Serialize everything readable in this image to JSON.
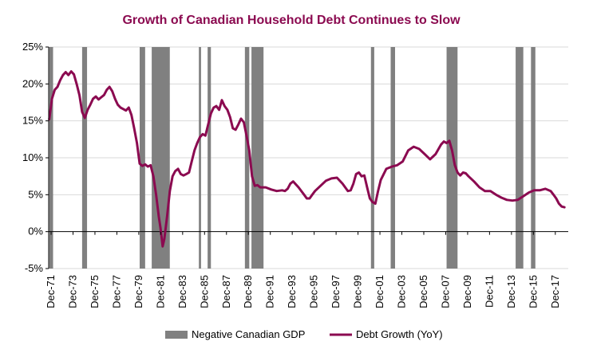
{
  "chart_data": {
    "type": "line",
    "title": "Growth of Canadian Household Debt Continues to Slow",
    "xlabel": "",
    "ylabel": "",
    "ylim": [
      -5,
      25
    ],
    "yticks": [
      -5,
      0,
      5,
      10,
      15,
      20,
      25
    ],
    "ytick_labels": [
      "-5%",
      "0%",
      "5%",
      "10%",
      "15%",
      "20%",
      "25%"
    ],
    "xlim": [
      1971.7,
      2019.1
    ],
    "xticks": [
      1971.92,
      1973.92,
      1975.92,
      1977.92,
      1979.92,
      1981.92,
      1983.92,
      1985.92,
      1987.92,
      1989.92,
      1991.92,
      1993.92,
      1995.92,
      1997.92,
      1999.92,
      2001.92,
      2003.92,
      2005.92,
      2007.92,
      2009.92,
      2011.92,
      2013.92,
      2015.92,
      2017.92
    ],
    "xtick_labels": [
      "Dec-71",
      "Dec-73",
      "Dec-75",
      "Dec-77",
      "Dec-79",
      "Dec-81",
      "Dec-83",
      "Dec-85",
      "Dec-87",
      "Dec-89",
      "Dec-91",
      "Dec-93",
      "Dec-95",
      "Dec-97",
      "Dec-99",
      "Dec-01",
      "Dec-03",
      "Dec-05",
      "Dec-07",
      "Dec-09",
      "Dec-11",
      "Dec-13",
      "Dec-15",
      "Dec-17"
    ],
    "grid": "horizontal",
    "legend_position": "bottom",
    "recessions": {
      "name": "Negative Canadian GDP",
      "color": "#808080",
      "periods": [
        [
          1971.75,
          1972.1
        ],
        [
          1974.75,
          1975.2
        ],
        [
          1980.0,
          1980.5
        ],
        [
          1981.1,
          1982.75
        ],
        [
          1985.4,
          1985.6
        ],
        [
          1986.2,
          1986.5
        ],
        [
          1989.6,
          1990.0
        ],
        [
          1990.2,
          1991.3
        ],
        [
          2001.1,
          2001.4
        ],
        [
          2002.9,
          2003.3
        ],
        [
          2008.0,
          2009.0
        ],
        [
          2014.3,
          2015.0
        ],
        [
          2015.7,
          2016.1
        ]
      ]
    },
    "series": [
      {
        "name": "Debt Growth (YoY)",
        "color": "#8B0A50",
        "x": [
          1971.75,
          1972.0,
          1972.25,
          1972.5,
          1972.75,
          1973.0,
          1973.25,
          1973.5,
          1973.75,
          1974.0,
          1974.25,
          1974.5,
          1974.75,
          1975.0,
          1975.25,
          1975.5,
          1975.75,
          1976.0,
          1976.25,
          1976.5,
          1976.75,
          1977.0,
          1977.25,
          1977.5,
          1977.75,
          1978.0,
          1978.25,
          1978.5,
          1978.75,
          1979.0,
          1979.25,
          1979.5,
          1979.75,
          1980.0,
          1980.25,
          1980.5,
          1980.75,
          1981.0,
          1981.25,
          1981.5,
          1981.75,
          1981.9,
          1982.1,
          1982.25,
          1982.5,
          1982.75,
          1983.0,
          1983.25,
          1983.5,
          1983.75,
          1984.0,
          1984.25,
          1984.5,
          1984.75,
          1985.0,
          1985.25,
          1985.5,
          1985.75,
          1986.0,
          1986.25,
          1986.5,
          1986.75,
          1987.0,
          1987.25,
          1987.5,
          1987.75,
          1988.0,
          1988.25,
          1988.5,
          1988.75,
          1989.0,
          1989.25,
          1989.5,
          1989.75,
          1990.0,
          1990.25,
          1990.5,
          1990.75,
          1991.0,
          1991.5,
          1992.0,
          1992.5,
          1993.0,
          1993.25,
          1993.5,
          1993.75,
          1994.0,
          1994.5,
          1995.0,
          1995.25,
          1995.5,
          1995.75,
          1996.0,
          1996.5,
          1997.0,
          1997.5,
          1998.0,
          1998.5,
          1999.0,
          1999.25,
          1999.5,
          1999.75,
          2000.0,
          2000.25,
          2000.5,
          2000.75,
          2001.0,
          2001.25,
          2001.5,
          2001.75,
          2002.0,
          2002.5,
          2003.0,
          2003.5,
          2004.0,
          2004.5,
          2005.0,
          2005.5,
          2006.0,
          2006.5,
          2007.0,
          2007.5,
          2007.75,
          2008.0,
          2008.25,
          2008.5,
          2008.75,
          2009.0,
          2009.25,
          2009.5,
          2009.75,
          2010.0,
          2010.5,
          2011.0,
          2011.5,
          2012.0,
          2012.5,
          2013.0,
          2013.5,
          2014.0,
          2014.5,
          2015.0,
          2015.5,
          2016.0,
          2016.5,
          2017.0,
          2017.5,
          2017.75,
          2018.0,
          2018.25,
          2018.5,
          2018.75
        ],
        "y": [
          15.2,
          18.0,
          19.2,
          19.6,
          20.5,
          21.2,
          21.6,
          21.2,
          21.7,
          21.3,
          20.0,
          18.5,
          16.2,
          15.4,
          16.5,
          17.2,
          18.0,
          18.3,
          17.9,
          18.2,
          18.5,
          19.2,
          19.6,
          19.0,
          18.0,
          17.2,
          16.8,
          16.6,
          16.4,
          16.8,
          15.8,
          14.0,
          12.0,
          9.2,
          8.9,
          9.1,
          8.8,
          9.0,
          7.5,
          5.0,
          2.0,
          0.5,
          -2.0,
          -1.0,
          2.0,
          5.5,
          7.5,
          8.2,
          8.5,
          7.8,
          7.6,
          7.8,
          8.0,
          9.5,
          11.0,
          12.0,
          12.8,
          13.2,
          13.0,
          14.5,
          16.0,
          16.8,
          17.0,
          16.5,
          17.8,
          17.0,
          16.5,
          15.5,
          14.0,
          13.8,
          14.5,
          15.3,
          14.8,
          13.0,
          11.0,
          7.5,
          6.2,
          6.3,
          6.0,
          6.0,
          5.7,
          5.5,
          5.6,
          5.5,
          5.8,
          6.5,
          6.8,
          6.0,
          5.0,
          4.5,
          4.5,
          5.0,
          5.5,
          6.2,
          6.9,
          7.2,
          7.3,
          6.5,
          5.5,
          5.6,
          6.5,
          7.8,
          8.0,
          7.5,
          7.6,
          6.0,
          4.5,
          4.0,
          3.8,
          5.5,
          7.0,
          8.5,
          8.8,
          9.0,
          9.5,
          11.0,
          11.5,
          11.2,
          10.5,
          9.8,
          10.5,
          11.8,
          12.2,
          12.0,
          12.3,
          11.0,
          9.0,
          8.0,
          7.6,
          8.0,
          7.9,
          7.5,
          6.8,
          6.0,
          5.5,
          5.5,
          5.0,
          4.6,
          4.3,
          4.2,
          4.3,
          4.8,
          5.3,
          5.6,
          5.6,
          5.8,
          5.5,
          5.0,
          4.5,
          3.8,
          3.4,
          3.3
        ]
      }
    ]
  }
}
